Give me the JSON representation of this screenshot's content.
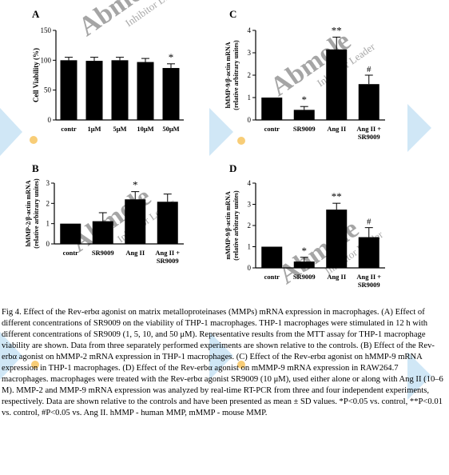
{
  "caption": {
    "title": "Fig 4. Effect of the Rev-erbα agonist on matrix metalloproteinases (MMPs) mRNA expression in macrophages.",
    "body": "(A) Effect of different concentrations of SR9009 on the viability of THP-1 macrophages. THP-1 macrophages were stimulated in 12 h with different concentrations of SR9009 (1, 5, 10, and 50 μM). Representative results from the MTT assay for THP-1 macrophage viability are shown. Data from three separately performed experiments are shown relative to the controls. (B) Effect of the Rev-erbα agonist on hMMP-2 mRNA expression in THP-1 macrophages. (C) Effect of the Rev-erbα agonist on hMMP-9 mRNA expression in THP-1 macrophages. (D) Effect of the Rev-erbα agonist on mMMP-9 mRNA expression in RAW264.7 macrophages. macrophages were treated with the Rev-erbα agonist SR9009 (10 μM), used either alone or along with Ang II (10–6 M). MMP-2 and MMP-9 mRNA expression was analyzed by real-time RT-PCR from three and four independent experiments, respectively. Data are shown relative to the controls and have been presented as mean ± SD values. *P<0.05 vs. control, **P<0.01 vs. control, #P<0.05 vs. Ang II. hMMP - human MMP, mMMP - mouse MMP."
  },
  "watermark": {
    "brand": "Abmole",
    "tagline": "Inhibitor Leader"
  },
  "colors": {
    "bar": "#000000",
    "control_bar": "#000000",
    "axis": "#000000"
  },
  "chart_data": [
    {
      "panel": "A",
      "type": "bar",
      "ylabel": "Cell Viability (%)",
      "ylim": [
        0,
        150
      ],
      "yticks": [
        "0",
        "50",
        "100",
        "150"
      ],
      "categories": [
        "contr",
        "1μM",
        "5μM",
        "10μM",
        "50μM"
      ],
      "values": [
        100,
        99,
        100,
        97,
        87
      ],
      "errors": [
        5,
        6,
        5,
        6,
        7
      ],
      "annotations": [
        "",
        "",
        "",
        "",
        "*"
      ]
    },
    {
      "panel": "B",
      "type": "bar",
      "ylabel": "hMMP-2/β-actin mRNA\n(relative arbitrary unites)",
      "ylim": [
        0,
        3
      ],
      "yticks": [
        "0",
        "1",
        "2",
        "3"
      ],
      "categories": [
        "contr",
        "SR9009",
        "Ang II",
        "Ang II +\nSR9009"
      ],
      "values": [
        1.0,
        1.12,
        2.2,
        2.08
      ],
      "errors": [
        0,
        0.42,
        0.38,
        0.38
      ],
      "annotations": [
        "",
        "",
        "*",
        ""
      ]
    },
    {
      "panel": "C",
      "type": "bar",
      "ylabel": "hMMP-9/β-actin mRNA\n(relative arbitrary unites)",
      "ylim": [
        0,
        4
      ],
      "yticks": [
        "0",
        "1",
        "2",
        "3",
        "4"
      ],
      "categories": [
        "contr",
        "SR9009",
        "Ang II",
        "Ang II +\nSR9009"
      ],
      "values": [
        1.0,
        0.45,
        3.15,
        1.6
      ],
      "errors": [
        0,
        0.15,
        0.55,
        0.4
      ],
      "annotations": [
        "",
        "*",
        "**",
        "#"
      ]
    },
    {
      "panel": "D",
      "type": "bar",
      "ylabel": "mMMP-9/β-actin mRNA\n(relative arbitrary unites)",
      "ylim": [
        0,
        4
      ],
      "yticks": [
        "0",
        "1",
        "2",
        "3",
        "4"
      ],
      "categories": [
        "contr",
        "SR9009",
        "Ang II",
        "Ang II +\nSR9009"
      ],
      "values": [
        1.0,
        0.3,
        2.75,
        1.45
      ],
      "errors": [
        0,
        0.2,
        0.3,
        0.45
      ],
      "annotations": [
        "",
        "*",
        "**",
        "#"
      ]
    }
  ]
}
